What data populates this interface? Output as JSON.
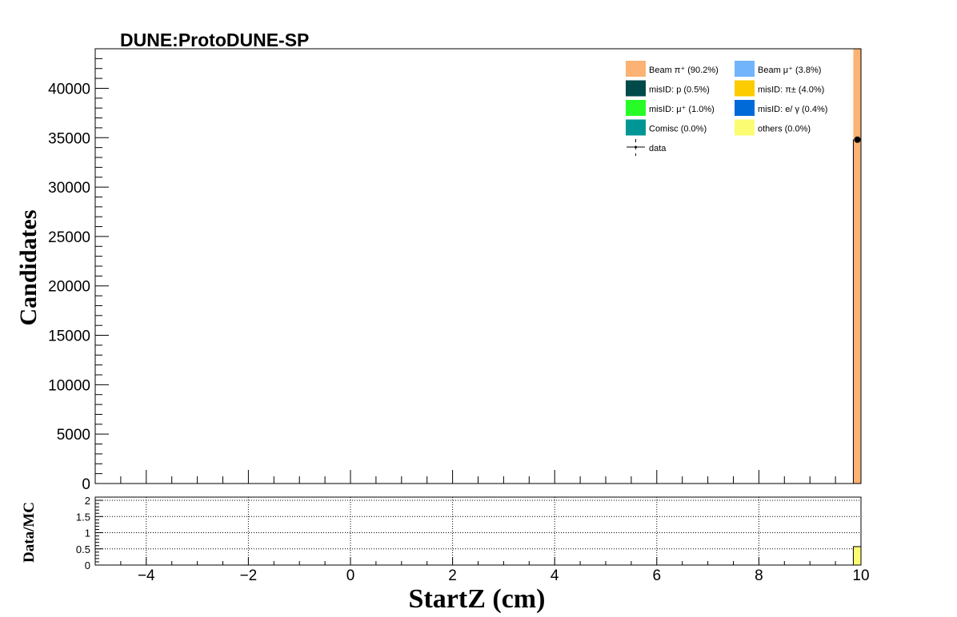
{
  "chart_data": [
    {
      "type": "bar",
      "title": "DUNE:ProtoDUNE-SP",
      "xlabel": "StartZ (cm)",
      "ylabel": "Candidates",
      "xlim": [
        -5,
        10
      ],
      "ylim": [
        0,
        44000
      ],
      "y_ticks": [
        "0",
        "5000",
        "10000",
        "15000",
        "20000",
        "25000",
        "30000",
        "35000",
        "40000"
      ],
      "x_ticks": [
        "−4",
        "−2",
        "0",
        "2",
        "4",
        "6",
        "8",
        "10"
      ],
      "grid": false,
      "legend_position": "top-right",
      "legend": [
        {
          "label": "Beam  π⁺ (90.2%)",
          "color": "#fbb274"
        },
        {
          "label": "Beam  μ⁺ (3.8%)",
          "color": "#72b4fb"
        },
        {
          "label": "misID: p (0.5%)",
          "color": "#004a4a"
        },
        {
          "label": "misID:  π± (4.0%)",
          "color": "#fccc00"
        },
        {
          "label": "misID:  μ⁺ (1.0%)",
          "color": "#27fc27"
        },
        {
          "label": "misID: e/ γ (0.4%)",
          "color": "#006ad8"
        },
        {
          "label": "Comisc (0.0%)",
          "color": "#009696"
        },
        {
          "label": "others (0.0%)",
          "color": "#fcfc72"
        },
        {
          "label": "data",
          "color": "#000000"
        }
      ],
      "bins": [
        {
          "x_low": 9.85,
          "x_high": 10.0,
          "value": 34800,
          "color": "#fbb274"
        }
      ],
      "data_points": [
        {
          "x": 9.93,
          "y": 34800
        }
      ]
    },
    {
      "type": "bar",
      "ylabel": "Data/MC",
      "xlim": [
        -5,
        10
      ],
      "ylim": [
        0,
        2.1
      ],
      "y_ticks": [
        "0",
        "0.5",
        "1",
        "1.5",
        "2"
      ],
      "x_ticks": [
        "−4",
        "−2",
        "0",
        "2",
        "4",
        "6",
        "8",
        "10"
      ],
      "grid": true,
      "bins": [
        {
          "x_low": 9.85,
          "x_high": 10.0,
          "value": 0.57,
          "color": "#fcfc72"
        }
      ]
    }
  ]
}
